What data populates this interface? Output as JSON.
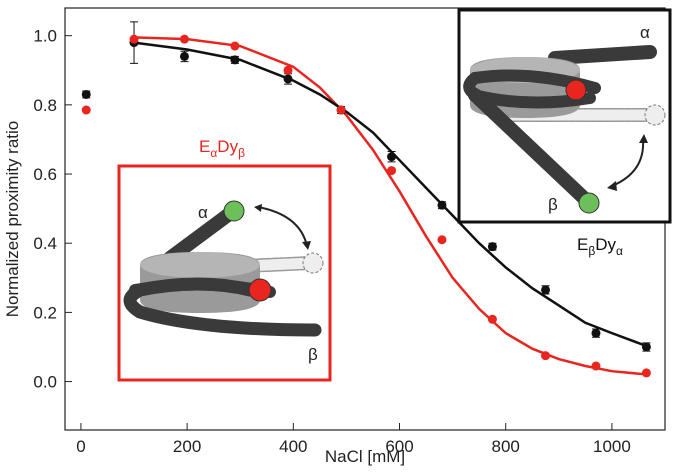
{
  "chart_data": {
    "type": "scatter",
    "x_label": "NaCl [mM]",
    "y_label": "Normalized proximity ratio",
    "xlim": [
      -30,
      1100
    ],
    "ylim": [
      -0.14,
      1.08
    ],
    "xticks": [
      0,
      200,
      400,
      600,
      800,
      1000
    ],
    "yticks": [
      {
        "value": 0,
        "label": "0.0"
      },
      0.2,
      0.4,
      0.6,
      0.8,
      {
        "value": 1,
        "label": "1.0"
      }
    ],
    "series": [
      {
        "type": "line",
        "color": "#e8251f",
        "x": [
          100,
          200,
          300,
          400,
          450,
          500,
          550,
          600,
          650,
          700,
          750,
          800,
          850,
          900,
          950,
          1000,
          1070
        ],
        "values": [
          0.995,
          0.99,
          0.97,
          0.91,
          0.85,
          0.77,
          0.67,
          0.55,
          0.42,
          0.3,
          0.21,
          0.14,
          0.095,
          0.065,
          0.045,
          0.03,
          0.02
        ]
      },
      {
        "type": "line",
        "color": "#111111",
        "x": [
          100,
          200,
          300,
          400,
          450,
          500,
          550,
          600,
          650,
          700,
          750,
          800,
          850,
          900,
          950,
          1000,
          1070
        ],
        "values": [
          0.98,
          0.96,
          0.93,
          0.87,
          0.83,
          0.78,
          0.72,
          0.64,
          0.56,
          0.48,
          0.4,
          0.33,
          0.27,
          0.22,
          0.17,
          0.14,
          0.1
        ]
      },
      {
        "type": "scatter",
        "color": "#111111",
        "x": [
          10,
          100,
          195,
          290,
          390,
          490,
          585,
          680,
          775,
          875,
          970,
          1065
        ],
        "values": [
          0.83,
          0.98,
          0.94,
          0.93,
          0.875,
          0.785,
          0.65,
          0.51,
          0.39,
          0.265,
          0.14,
          0.1
        ],
        "errors": [
          0.01,
          0.06,
          0.015,
          0.01,
          0.015,
          0.01,
          0.015,
          0.01,
          0.01,
          0.012,
          0.012,
          0.012
        ]
      },
      {
        "type": "scatter",
        "color": "#e8251f",
        "x": [
          10,
          100,
          195,
          290,
          390,
          490,
          585,
          680,
          775,
          875,
          970,
          1065
        ],
        "values": [
          0.785,
          0.99,
          0.99,
          0.97,
          0.9,
          0.785,
          0.61,
          0.41,
          0.18,
          0.075,
          0.045,
          0.025
        ]
      }
    ],
    "insets": [
      {
        "label_parts": [
          "E",
          "α",
          "Dy",
          "β"
        ],
        "color": "#e8251f",
        "alpha": "α",
        "beta": "β"
      },
      {
        "label_parts": [
          "E",
          "β",
          "Dy",
          "α"
        ],
        "color": "#111111",
        "alpha": "α",
        "beta": "β"
      }
    ]
  }
}
